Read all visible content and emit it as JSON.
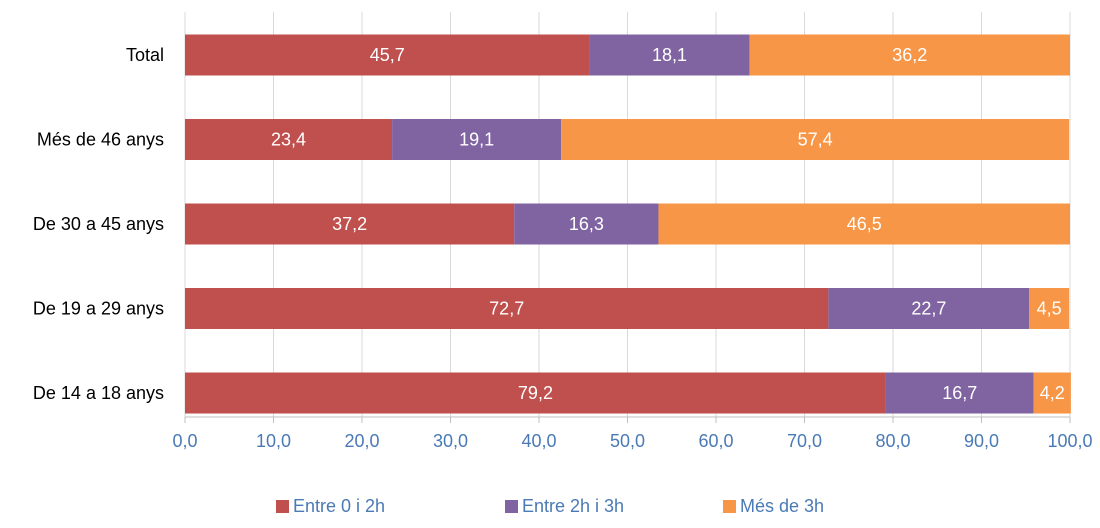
{
  "chart_data": {
    "type": "bar",
    "orientation": "horizontal",
    "stacked": true,
    "categories": [
      "Total",
      "Més de 46 anys",
      "De 30 a 45 anys",
      "De 19 a 29 anys",
      "De 14 a 18 anys"
    ],
    "series": [
      {
        "name": "Entre 0 i 2h",
        "color": "#c0504d",
        "values": [
          45.7,
          23.4,
          37.2,
          72.7,
          79.2
        ],
        "labels": [
          "45,7",
          "23,4",
          "37,2",
          "72,7",
          "79,2"
        ]
      },
      {
        "name": "Entre 2h i 3h",
        "color": "#8064a2",
        "values": [
          18.1,
          19.1,
          16.3,
          22.7,
          16.7
        ],
        "labels": [
          "18,1",
          "19,1",
          "16,3",
          "22,7",
          "16,7"
        ]
      },
      {
        "name": "Més de 3h",
        "color": "#f79646",
        "values": [
          36.2,
          57.4,
          46.5,
          4.5,
          4.2
        ],
        "labels": [
          "36,2",
          "57,4",
          "46,5",
          "4,5",
          "4,2"
        ]
      }
    ],
    "xlim": [
      0,
      100
    ],
    "xticks": [
      0,
      10,
      20,
      30,
      40,
      50,
      60,
      70,
      80,
      90,
      100
    ],
    "xtick_labels": [
      "0,0",
      "10,0",
      "20,0",
      "30,0",
      "40,0",
      "50,0",
      "60,0",
      "70,0",
      "80,0",
      "90,0",
      "100,0"
    ],
    "grid": true,
    "legend_position": "bottom",
    "colors": {
      "tick_text": "#4a7ab5",
      "category_text": "#000000",
      "data_label_text": "#ffffff"
    }
  }
}
